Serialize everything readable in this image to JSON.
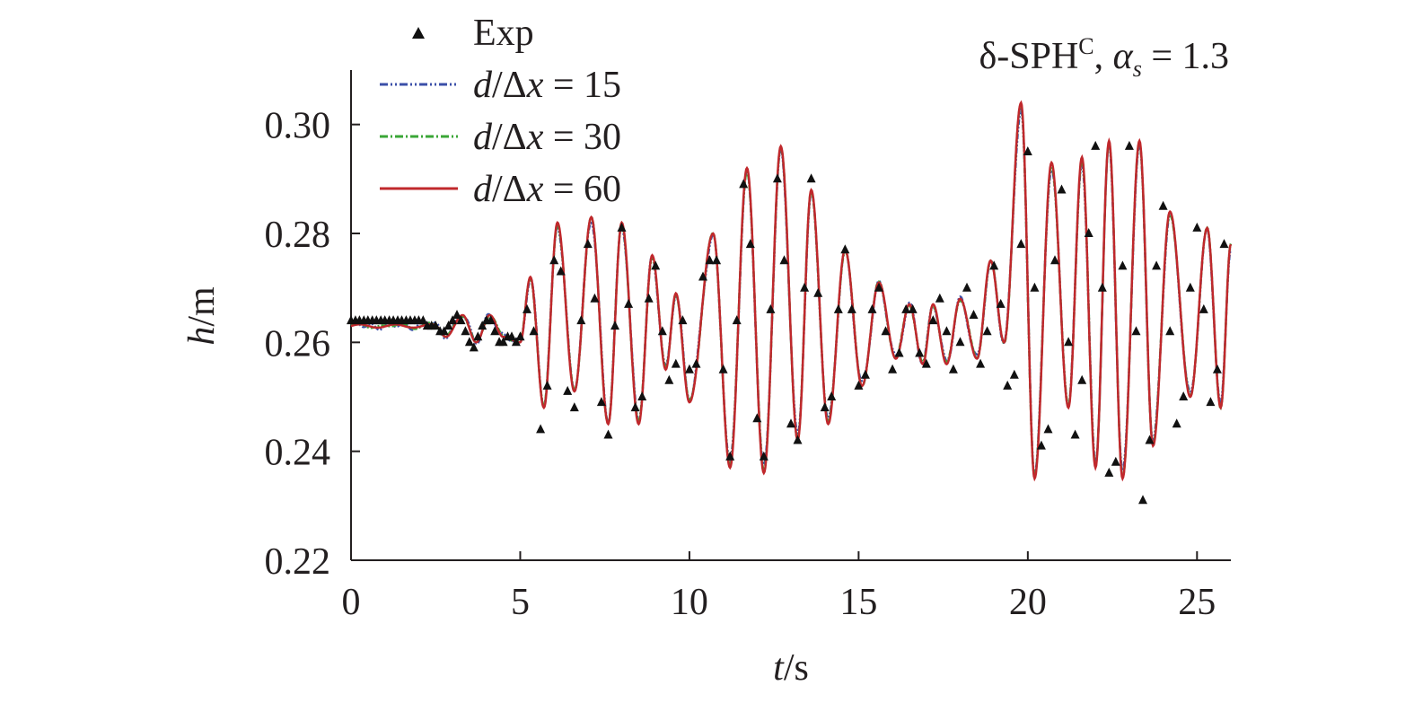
{
  "chart_data": {
    "type": "line",
    "annotation": {
      "prefix": "δ-SPH",
      "sup": "C",
      "mid": ", ",
      "alpha": "α",
      "sub": "s",
      "suffix": " = 1.3"
    },
    "xlabel": {
      "var": "t",
      "unit": "/s"
    },
    "ylabel": {
      "var": "h",
      "unit": "/m"
    },
    "xlim": [
      0,
      26
    ],
    "ylim": [
      0.22,
      0.31
    ],
    "xticks": [
      0,
      5,
      10,
      15,
      20,
      25
    ],
    "xtick_labels": [
      "0",
      "5",
      "10",
      "15",
      "20",
      "25"
    ],
    "yticks": [
      0.22,
      0.24,
      0.26,
      0.28,
      0.3
    ],
    "ytick_labels": [
      "0.22",
      "0.24",
      "0.26",
      "0.28",
      "0.30"
    ],
    "grid": false,
    "legend_position": "top-left",
    "series": [
      {
        "name": "Exp",
        "style": "markers",
        "marker": "triangle",
        "color": "#111111"
      },
      {
        "name": "d/Δx = 15",
        "legend": {
          "v": "d",
          "op": "/Δ",
          "w": "x",
          "rest": " = 15"
        },
        "style": "dash-dot-dot",
        "color": "#3b4fa8"
      },
      {
        "name": "d/Δx = 30",
        "legend": {
          "v": "d",
          "op": "/Δ",
          "w": "x",
          "rest": " = 30"
        },
        "style": "dash-dot",
        "color": "#3aa636"
      },
      {
        "name": "d/Δx = 60",
        "legend": {
          "v": "d",
          "op": "/Δ",
          "w": "x",
          "rest": " = 60"
        },
        "style": "solid",
        "color": "#c0282c"
      }
    ],
    "base_curve": {
      "x": [
        0,
        2.5,
        2.8,
        3.3,
        3.7,
        4.1,
        4.5,
        5.0,
        5.3,
        5.7,
        6.1,
        6.6,
        7.1,
        7.6,
        8.0,
        8.5,
        8.9,
        9.3,
        9.6,
        10.0,
        10.7,
        11.2,
        11.7,
        12.2,
        12.7,
        13.2,
        13.6,
        14.1,
        14.6,
        15.1,
        15.6,
        16.1,
        16.5,
        16.9,
        17.2,
        17.6,
        18.0,
        18.5,
        18.9,
        19.3,
        19.8,
        20.2,
        20.7,
        21.2,
        21.6,
        22.0,
        22.4,
        22.8,
        23.3,
        23.7,
        24.2,
        24.8,
        25.3,
        25.7,
        26.0
      ],
      "y": [
        0.263,
        0.263,
        0.261,
        0.265,
        0.26,
        0.265,
        0.261,
        0.26,
        0.272,
        0.248,
        0.282,
        0.251,
        0.283,
        0.245,
        0.282,
        0.245,
        0.276,
        0.255,
        0.269,
        0.249,
        0.28,
        0.237,
        0.292,
        0.236,
        0.296,
        0.242,
        0.288,
        0.245,
        0.277,
        0.252,
        0.271,
        0.257,
        0.267,
        0.256,
        0.267,
        0.256,
        0.268,
        0.257,
        0.275,
        0.26,
        0.304,
        0.235,
        0.293,
        0.248,
        0.294,
        0.237,
        0.297,
        0.235,
        0.297,
        0.241,
        0.284,
        0.25,
        0.281,
        0.248,
        0.278
      ]
    },
    "exp_data": {
      "x": [
        0.0,
        0.13,
        0.25,
        0.38,
        0.5,
        0.63,
        0.75,
        0.88,
        1.0,
        1.13,
        1.25,
        1.38,
        1.5,
        1.63,
        1.75,
        1.88,
        2.0,
        2.13,
        2.25,
        2.38,
        2.5,
        2.63,
        2.75,
        2.88,
        3.0,
        3.13,
        3.25,
        3.38,
        3.5,
        3.63,
        3.75,
        3.88,
        4.0,
        4.13,
        4.25,
        4.38,
        4.5,
        4.63,
        4.75,
        4.88,
        5.0,
        5.2,
        5.4,
        5.6,
        5.8,
        6.0,
        6.2,
        6.4,
        6.6,
        6.8,
        7.0,
        7.2,
        7.4,
        7.6,
        7.8,
        8.0,
        8.2,
        8.4,
        8.6,
        8.8,
        9.0,
        9.2,
        9.4,
        9.6,
        9.8,
        10.0,
        10.2,
        10.4,
        10.6,
        10.8,
        11.0,
        11.2,
        11.4,
        11.6,
        11.8,
        12.0,
        12.2,
        12.4,
        12.6,
        12.8,
        13.0,
        13.2,
        13.4,
        13.6,
        13.8,
        14.0,
        14.2,
        14.4,
        14.6,
        14.8,
        15.0,
        15.2,
        15.4,
        15.6,
        15.8,
        16.0,
        16.2,
        16.4,
        16.6,
        16.8,
        17.0,
        17.2,
        17.4,
        17.6,
        17.8,
        18.0,
        18.2,
        18.4,
        18.6,
        18.8,
        19.0,
        19.2,
        19.4,
        19.6,
        19.8,
        20.0,
        20.2,
        20.4,
        20.6,
        20.8,
        21.0,
        21.2,
        21.4,
        21.6,
        21.8,
        22.0,
        22.2,
        22.4,
        22.6,
        22.8,
        23.0,
        23.2,
        23.4,
        23.6,
        23.8,
        24.0,
        24.2,
        24.4,
        24.6,
        24.8,
        25.0,
        25.2,
        25.4,
        25.6,
        25.8
      ],
      "y": [
        0.264,
        0.264,
        0.264,
        0.264,
        0.264,
        0.264,
        0.264,
        0.264,
        0.264,
        0.264,
        0.264,
        0.264,
        0.264,
        0.264,
        0.264,
        0.264,
        0.264,
        0.264,
        0.263,
        0.263,
        0.263,
        0.262,
        0.262,
        0.263,
        0.264,
        0.265,
        0.264,
        0.262,
        0.26,
        0.259,
        0.261,
        0.263,
        0.264,
        0.264,
        0.262,
        0.26,
        0.26,
        0.261,
        0.261,
        0.26,
        0.261,
        0.266,
        0.262,
        0.244,
        0.252,
        0.275,
        0.273,
        0.251,
        0.248,
        0.264,
        0.278,
        0.268,
        0.249,
        0.243,
        0.263,
        0.281,
        0.267,
        0.248,
        0.25,
        0.268,
        0.274,
        0.262,
        0.253,
        0.256,
        0.264,
        0.255,
        0.256,
        0.272,
        0.275,
        0.275,
        0.255,
        0.239,
        0.264,
        0.289,
        0.278,
        0.246,
        0.239,
        0.266,
        0.29,
        0.275,
        0.245,
        0.242,
        0.27,
        0.29,
        0.269,
        0.248,
        0.25,
        0.266,
        0.277,
        0.266,
        0.252,
        0.254,
        0.266,
        0.27,
        0.262,
        0.255,
        0.258,
        0.266,
        0.266,
        0.258,
        0.256,
        0.264,
        0.268,
        0.262,
        0.255,
        0.26,
        0.27,
        0.265,
        0.256,
        0.262,
        0.274,
        0.267,
        0.252,
        0.254,
        0.278,
        0.295,
        0.27,
        0.241,
        0.244,
        0.275,
        0.288,
        0.26,
        0.243,
        0.253,
        0.28,
        0.296,
        0.27,
        0.236,
        0.238,
        0.274,
        0.296,
        0.262,
        0.231,
        0.242,
        0.274,
        0.285,
        0.262,
        0.245,
        0.25,
        0.27,
        0.281,
        0.266,
        0.249,
        0.255,
        0.278
      ]
    }
  }
}
